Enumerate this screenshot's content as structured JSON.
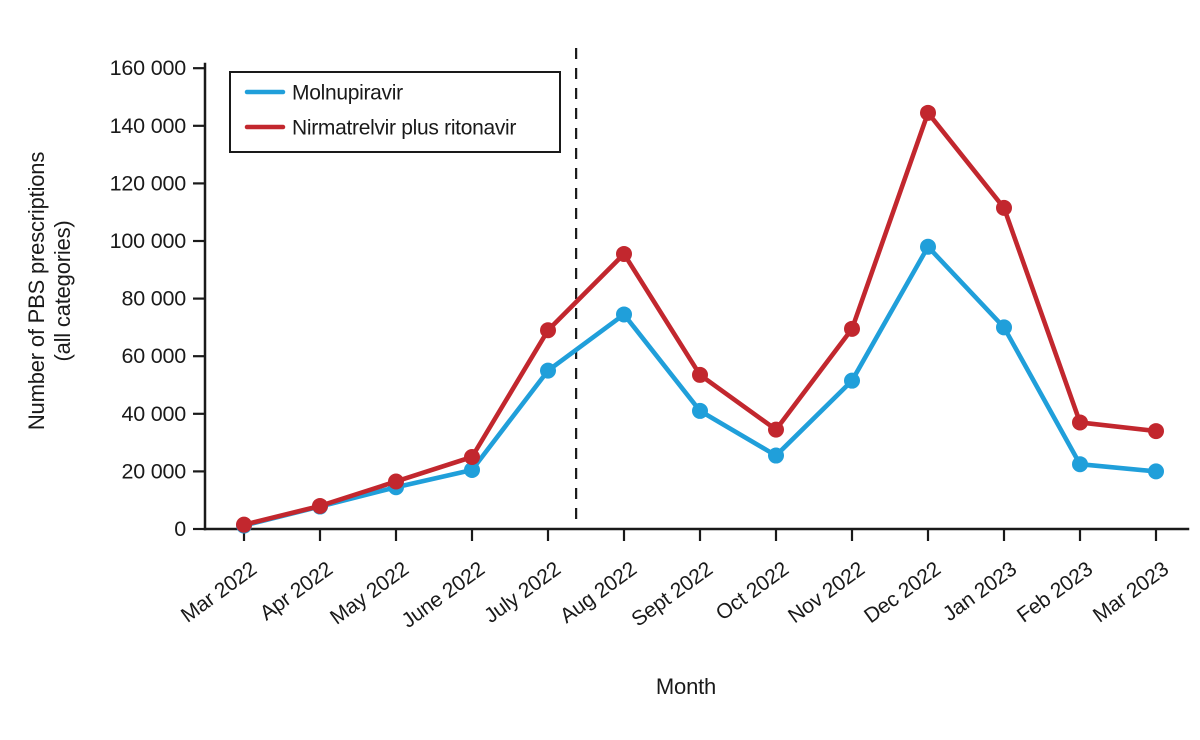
{
  "figure": {
    "ylabel_line1": "Number of PBS prescriptions",
    "ylabel_line2": "(all categories)"
  },
  "chart_data": {
    "type": "line",
    "title": "",
    "xlabel": "Month",
    "ylabel": "Number of PBS prescriptions (all categories)",
    "categories": [
      "Mar 2022",
      "Apr 2022",
      "May 2022",
      "June 2022",
      "July 2022",
      "Aug 2022",
      "Sept 2022",
      "Oct 2022",
      "Nov 2022",
      "Dec 2022",
      "Jan 2023",
      "Feb 2023",
      "Mar 2023"
    ],
    "series": [
      {
        "name": "Molnupiravir",
        "color": "#209FDA",
        "values": [
          1200,
          7800,
          14500,
          20500,
          55000,
          74500,
          41000,
          25500,
          51500,
          98000,
          70000,
          22500,
          20000
        ]
      },
      {
        "name": "Nirmatrelvir plus ritonavir",
        "color": "#C2272E",
        "values": [
          1500,
          8000,
          16500,
          25000,
          69000,
          95500,
          53500,
          34500,
          69500,
          144500,
          111500,
          37000,
          34000
        ]
      }
    ],
    "ylim": [
      0,
      160000
    ],
    "y_ticks": [
      0,
      20000,
      40000,
      60000,
      80000,
      100000,
      120000,
      140000,
      160000
    ],
    "y_tick_labels": [
      "0",
      "20 000",
      "40 000",
      "60 000",
      "80 000",
      "100 000",
      "120 000",
      "140 000",
      "160 000"
    ],
    "grid": false,
    "legend_position": "upper left",
    "annotations": [
      {
        "type": "vline_dashed",
        "between_categories": [
          "July 2022",
          "Aug 2022"
        ],
        "offset_fraction": 0.37
      }
    ]
  },
  "style": {
    "axis_color": "#1a1a1a",
    "background": "#ffffff"
  }
}
